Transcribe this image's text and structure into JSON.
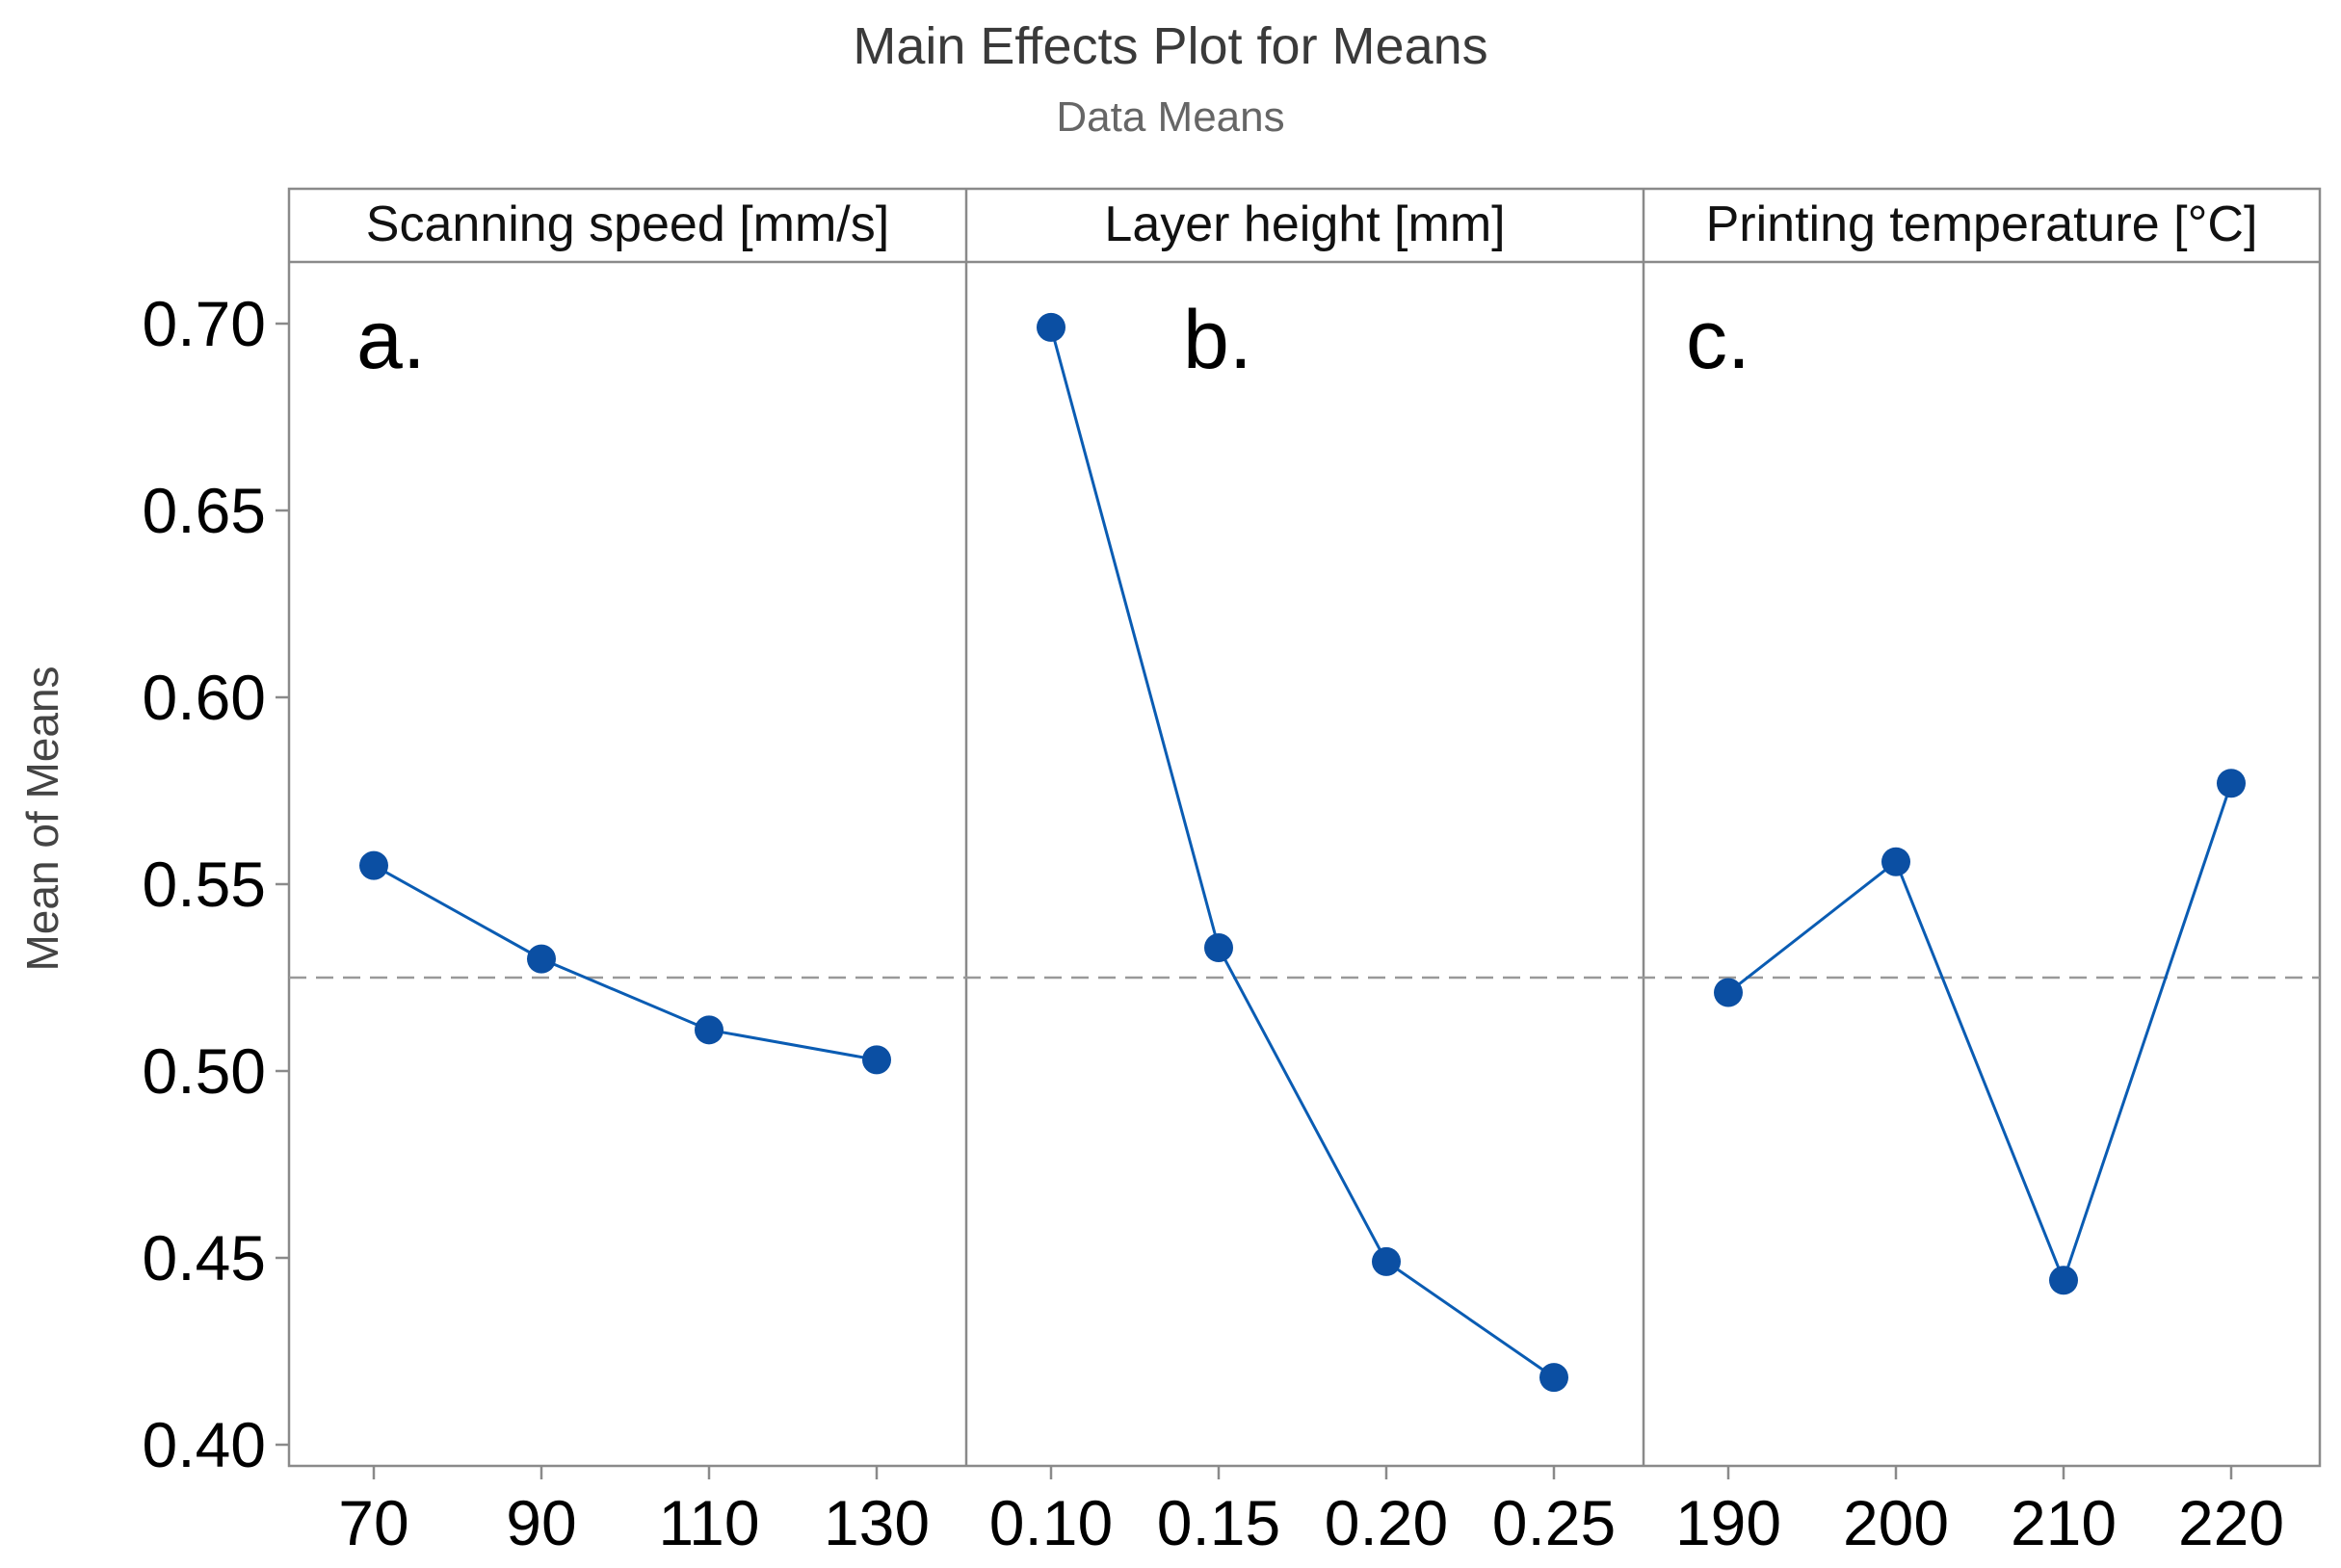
{
  "chart_data": {
    "type": "line",
    "title": "Main Effects Plot for Means",
    "subtitle": "Data Means",
    "ylabel": "Mean of Means",
    "ylim": [
      0.4,
      0.72
    ],
    "yticks": [
      "0.70",
      "0.65",
      "0.60",
      "0.55",
      "0.50",
      "0.45",
      "0.40"
    ],
    "ytick_values": [
      0.7,
      0.65,
      0.6,
      0.55,
      0.5,
      0.45,
      0.4
    ],
    "reference_line": 0.525,
    "grid": false,
    "colors": {
      "series": "#0a5cb3",
      "marker": "#0b4fa3",
      "reference": "#999999",
      "frame": "#8a8a8a"
    },
    "panels": [
      {
        "letter": "a.",
        "header": "Scanning speed [mm/s]",
        "categories": [
          "70",
          "90",
          "110",
          "130"
        ],
        "values": [
          0.555,
          0.53,
          0.511,
          0.503
        ]
      },
      {
        "letter": "b.",
        "header": "Layer height [mm]",
        "categories": [
          "0.10",
          "0.15",
          "0.20",
          "0.25"
        ],
        "values": [
          0.699,
          0.533,
          0.449,
          0.418
        ]
      },
      {
        "letter": "c.",
        "header": "Printing temperature [°C]",
        "categories": [
          "190",
          "200",
          "210",
          "220"
        ],
        "values": [
          0.521,
          0.556,
          0.444,
          0.577
        ]
      }
    ]
  }
}
